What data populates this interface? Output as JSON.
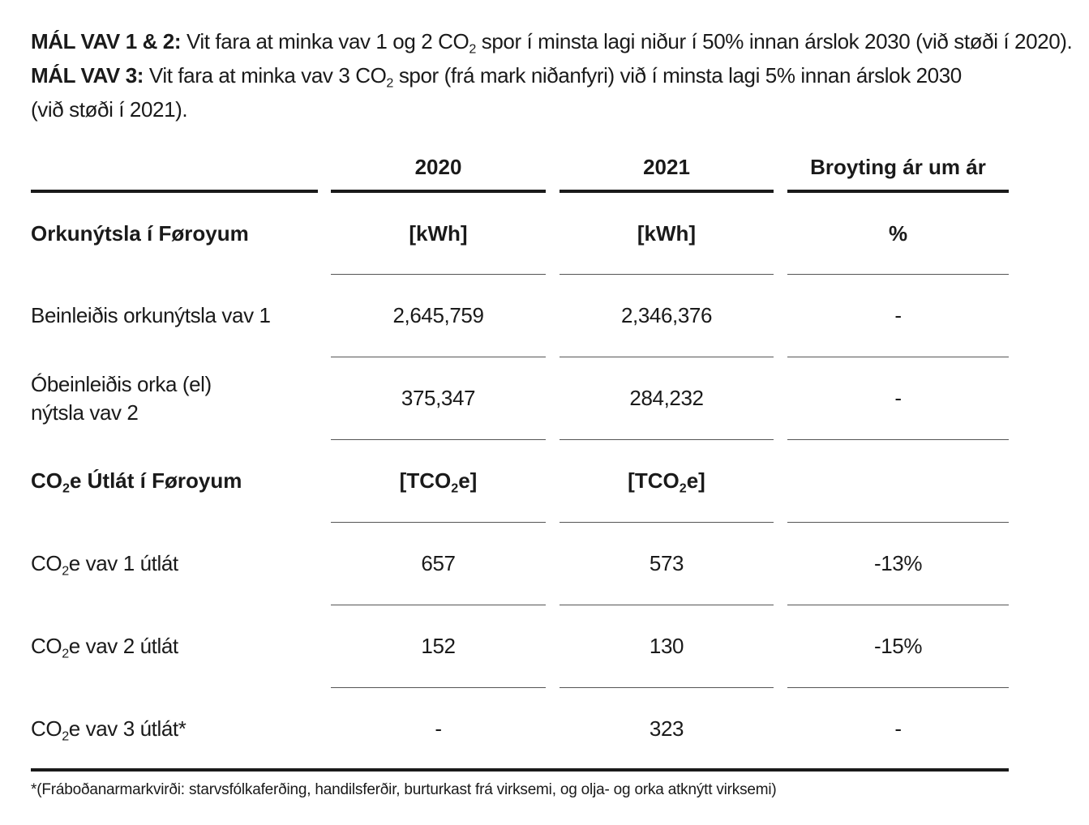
{
  "intro": {
    "goal12_label": "MÁL VAV 1 & 2:",
    "goal12_text_a": "Vit fara at minka vav 1 og 2 CO",
    "goal12_sub": "2",
    "goal12_text_b": "spor í minsta lagi niður í 50% innan árslok 2030 (við støði í 2020).",
    "goal3_label": "MÁL VAV 3:",
    "goal3_text_a": "Vit fara at minka vav 3 CO",
    "goal3_sub": "2",
    "goal3_text_b": "spor (frá mark niðanfyri) við í minsta lagi 5% innan árslok 2030",
    "goal3_text_c": "(við støði í 2021)."
  },
  "table": {
    "headers": [
      "2020",
      "2021",
      "Broyting ár um ár"
    ],
    "section1": {
      "title": "Orkunýtsla í Føroyum",
      "unit_2020": "[kWh]",
      "unit_2021": "[kWh]",
      "unit_change": "%"
    },
    "rows1": [
      {
        "label": "Beinleiðis orkunýtsla vav 1",
        "v2020": "2,645,759",
        "v2021": "2,346,376",
        "change": "-"
      },
      {
        "label_line1": "Óbeinleiðis orka (el)",
        "label_line2": "nýtsla vav 2",
        "v2020": "375,347",
        "v2021": "284,232",
        "change": "-"
      }
    ],
    "section2": {
      "title_a": "CO",
      "title_sub": "2",
      "title_b": "e Útlát í Føroyum",
      "unit_a": "[TCO",
      "unit_sub": "2",
      "unit_b": "e]"
    },
    "rows2": [
      {
        "label_a": "CO",
        "label_sub": "2",
        "label_b": "e vav 1 útlát",
        "v2020": "657",
        "v2021": "573",
        "change": "-13%"
      },
      {
        "label_a": "CO",
        "label_sub": "2",
        "label_b": "e vav 2 útlát",
        "v2020": "152",
        "v2021": "130",
        "change": "-15%"
      },
      {
        "label_a": "CO",
        "label_sub": "2",
        "label_b": "e vav 3 útlát*",
        "v2020": "-",
        "v2021": "323",
        "change": "-"
      }
    ]
  },
  "footnote": "*(Fráboðanarmarkvirði: starvsfólkaferðing, handilsferðir, burturkast frá virksemi, og olja- og orka atknýtt virksemi)"
}
